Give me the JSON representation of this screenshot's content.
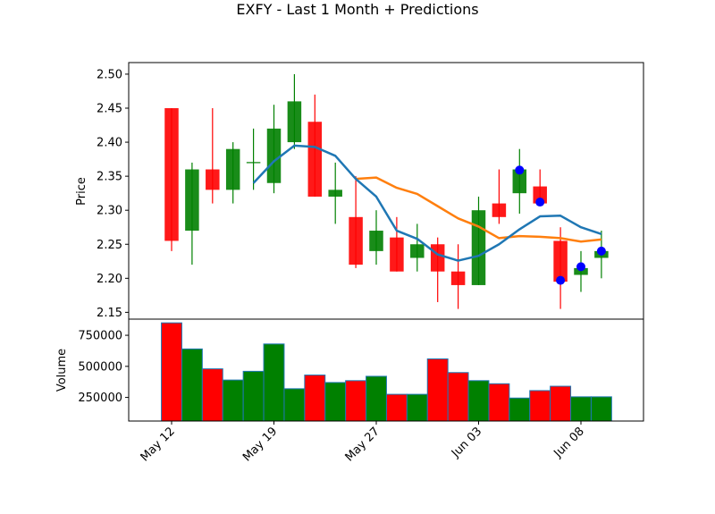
{
  "chart_data": {
    "type": "candlestick",
    "title": "EXFY - Last 1 Month + Predictions",
    "colors": {
      "up": "#008000",
      "down": "#ff0000",
      "ma_short": "#1f77b4",
      "ma_long": "#ff7f0e",
      "prediction": "#0000ff"
    },
    "price_panel": {
      "ylabel": "Price",
      "ylim": [
        2.14,
        2.517
      ],
      "yticks": [
        "2.15",
        "2.20",
        "2.25",
        "2.30",
        "2.35",
        "2.40",
        "2.45",
        "2.50"
      ],
      "candles": [
        {
          "open": 2.45,
          "high": 2.45,
          "low": 2.24,
          "close": 2.255
        },
        {
          "open": 2.27,
          "high": 2.37,
          "low": 2.22,
          "close": 2.36
        },
        {
          "open": 2.36,
          "high": 2.45,
          "low": 2.31,
          "close": 2.33
        },
        {
          "open": 2.33,
          "high": 2.4,
          "low": 2.31,
          "close": 2.39
        },
        {
          "open": 2.37,
          "high": 2.42,
          "low": 2.33,
          "close": 2.37
        },
        {
          "open": 2.34,
          "high": 2.455,
          "low": 2.325,
          "close": 2.42
        },
        {
          "open": 2.4,
          "high": 2.5,
          "low": 2.39,
          "close": 2.46
        },
        {
          "open": 2.43,
          "high": 2.47,
          "low": 2.32,
          "close": 2.32
        },
        {
          "open": 2.32,
          "high": 2.37,
          "low": 2.28,
          "close": 2.33
        },
        {
          "open": 2.29,
          "high": 2.35,
          "low": 2.215,
          "close": 2.22
        },
        {
          "open": 2.24,
          "high": 2.3,
          "low": 2.22,
          "close": 2.27
        },
        {
          "open": 2.26,
          "high": 2.29,
          "low": 2.21,
          "close": 2.21
        },
        {
          "open": 2.23,
          "high": 2.28,
          "low": 2.21,
          "close": 2.25
        },
        {
          "open": 2.25,
          "high": 2.26,
          "low": 2.165,
          "close": 2.21
        },
        {
          "open": 2.21,
          "high": 2.25,
          "low": 2.155,
          "close": 2.19
        },
        {
          "open": 2.19,
          "high": 2.32,
          "low": 2.19,
          "close": 2.3
        },
        {
          "open": 2.31,
          "high": 2.36,
          "low": 2.28,
          "close": 2.29
        },
        {
          "open": 2.325,
          "high": 2.39,
          "low": 2.295,
          "close": 2.36
        },
        {
          "open": 2.335,
          "high": 2.36,
          "low": 2.31,
          "close": 2.31
        },
        {
          "open": 2.255,
          "high": 2.275,
          "low": 2.155,
          "close": 2.195
        },
        {
          "open": 2.205,
          "high": 2.24,
          "low": 2.18,
          "close": 2.215
        },
        {
          "open": 2.23,
          "high": 2.27,
          "low": 2.2,
          "close": 2.24
        }
      ],
      "ma_short": {
        "start": 4,
        "values": [
          2.34,
          2.372,
          2.395,
          2.393,
          2.38,
          2.346,
          2.32,
          2.27,
          2.258,
          2.235,
          2.226,
          2.233,
          2.25,
          2.272,
          2.291,
          2.292,
          2.275,
          2.265
        ]
      },
      "ma_long": {
        "start": 9,
        "values": [
          2.346,
          2.348,
          2.333,
          2.324,
          2.306,
          2.288,
          2.276,
          2.259,
          2.262,
          2.261,
          2.259,
          2.254,
          2.257
        ]
      },
      "predictions": [
        {
          "index": 17,
          "value": 2.359
        },
        {
          "index": 18,
          "value": 2.312
        },
        {
          "index": 19,
          "value": 2.197
        },
        {
          "index": 20,
          "value": 2.217
        },
        {
          "index": 21,
          "value": 2.24
        }
      ]
    },
    "volume_panel": {
      "ylabel": "Volume",
      "ylim": [
        60000,
        880000
      ],
      "yticks": [
        "250000",
        "500000",
        "750000"
      ],
      "values": [
        850000,
        640000,
        480000,
        390000,
        460000,
        680000,
        320000,
        430000,
        370000,
        385000,
        420000,
        275000,
        275000,
        560000,
        450000,
        385000,
        360000,
        245000,
        305000,
        340000,
        255000,
        255000
      ]
    },
    "xtick_labels": [
      {
        "index": 0,
        "label": "May 12"
      },
      {
        "index": 5,
        "label": "May 19"
      },
      {
        "index": 10,
        "label": "May 27"
      },
      {
        "index": 15,
        "label": "Jun 03"
      },
      {
        "index": 20,
        "label": "Jun 08"
      }
    ]
  }
}
